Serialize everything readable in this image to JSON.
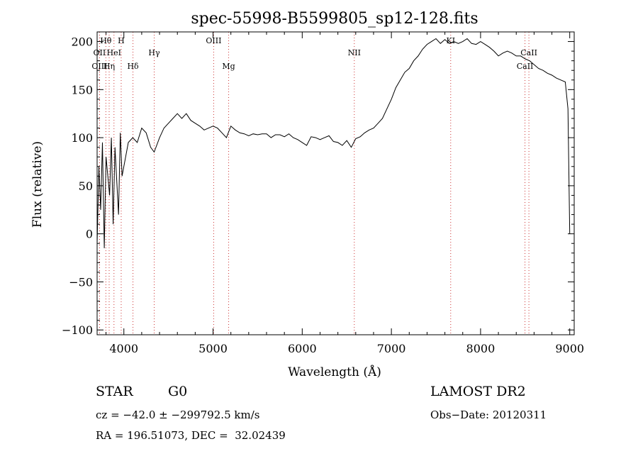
{
  "chart_data": {
    "type": "line",
    "title": "spec-55998-B5599805_sp12-128.fits",
    "xlabel": "Wavelength (Å)",
    "ylabel": "Flux (relative)",
    "xlim": [
      3700,
      9050
    ],
    "ylim": [
      -105,
      210
    ],
    "xticks": [
      4000,
      5000,
      6000,
      7000,
      8000,
      9000
    ],
    "yticks": [
      -100,
      -50,
      0,
      50,
      100,
      150,
      200
    ],
    "tick_labels_x": [
      "4000",
      "5000",
      "6000",
      "7000",
      "8000",
      "9000"
    ],
    "tick_labels_y": [
      "−100",
      "−50",
      "0",
      "50",
      "100",
      "150",
      "200"
    ],
    "grid": false,
    "line_color": "#000000",
    "marker_line_color": "#cc3333",
    "line_markers": [
      {
        "label": "Hθ",
        "wavelength": 3798,
        "row": 1
      },
      {
        "label": "H",
        "wavelength": 3970,
        "row": 1
      },
      {
        "label": "OII",
        "wavelength": 3727,
        "row": 2
      },
      {
        "label": "HeI",
        "wavelength": 3889,
        "row": 2
      },
      {
        "label": "OIII",
        "wavelength": 3727,
        "row": 3
      },
      {
        "label": "Hη",
        "wavelength": 3835,
        "row": 3
      },
      {
        "label": "Hδ",
        "wavelength": 4102,
        "row": 3
      },
      {
        "label": "Hγ",
        "wavelength": 4340,
        "row": 2
      },
      {
        "label": "OIII",
        "wavelength": 5007,
        "row": 1
      },
      {
        "label": "Mg",
        "wavelength": 5175,
        "row": 3
      },
      {
        "label": "NII",
        "wavelength": 6584,
        "row": 2
      },
      {
        "label": "KI",
        "wavelength": 7665,
        "row": 1
      },
      {
        "label": "CaII",
        "wavelength": 8542,
        "row": 2
      },
      {
        "label": "CaII",
        "wavelength": 8498,
        "row": 3
      }
    ],
    "series": [
      {
        "x": [
          3700,
          3720,
          3740,
          3760,
          3780,
          3800,
          3820,
          3840,
          3860,
          3880,
          3900,
          3920,
          3940,
          3960,
          3980,
          4000,
          4050,
          4100,
          4150,
          4200,
          4250,
          4300,
          4340,
          4400,
          4450,
          4500,
          4550,
          4600,
          4650,
          4700,
          4750,
          4800,
          4850,
          4900,
          4950,
          5000,
          5050,
          5100,
          5150,
          5200,
          5250,
          5300,
          5350,
          5400,
          5450,
          5500,
          5550,
          5600,
          5650,
          5700,
          5750,
          5800,
          5850,
          5900,
          5950,
          6000,
          6050,
          6100,
          6150,
          6200,
          6250,
          6300,
          6350,
          6400,
          6450,
          6500,
          6550,
          6600,
          6650,
          6700,
          6750,
          6800,
          6850,
          6900,
          6950,
          7000,
          7050,
          7100,
          7150,
          7200,
          7250,
          7300,
          7350,
          7400,
          7450,
          7500,
          7550,
          7600,
          7650,
          7700,
          7750,
          7800,
          7850,
          7900,
          7950,
          8000,
          8050,
          8100,
          8150,
          8200,
          8250,
          8300,
          8350,
          8400,
          8450,
          8500,
          8550,
          8600,
          8650,
          8700,
          8750,
          8800,
          8850,
          8900,
          8950,
          8980,
          9000
        ],
        "y": [
          -10,
          70,
          25,
          95,
          -15,
          80,
          60,
          40,
          100,
          10,
          90,
          55,
          20,
          105,
          60,
          70,
          95,
          100,
          95,
          110,
          105,
          90,
          85,
          100,
          110,
          115,
          120,
          125,
          120,
          125,
          118,
          115,
          112,
          108,
          110,
          112,
          110,
          105,
          100,
          112,
          108,
          105,
          104,
          102,
          104,
          103,
          104,
          104,
          100,
          103,
          103,
          101,
          104,
          100,
          98,
          95,
          92,
          101,
          100,
          98,
          100,
          102,
          96,
          95,
          92,
          97,
          90,
          99,
          101,
          105,
          108,
          110,
          115,
          120,
          130,
          140,
          152,
          160,
          168,
          172,
          180,
          185,
          192,
          197,
          200,
          203,
          198,
          202,
          198,
          200,
          198,
          200,
          203,
          198,
          197,
          200,
          197,
          194,
          190,
          185,
          188,
          190,
          188,
          185,
          185,
          182,
          180,
          176,
          172,
          170,
          167,
          165,
          162,
          160,
          158,
          130,
          0
        ]
      }
    ],
    "annotations": {
      "object_class": "STAR",
      "subclass": "G0",
      "survey": "LAMOST DR2",
      "cz": "cz = −42.0 ± −299792.5 km/s",
      "obs_date": "Obs−Date: 20120311",
      "coords": "RA = 196.51073, DEC =  32.02439"
    }
  }
}
